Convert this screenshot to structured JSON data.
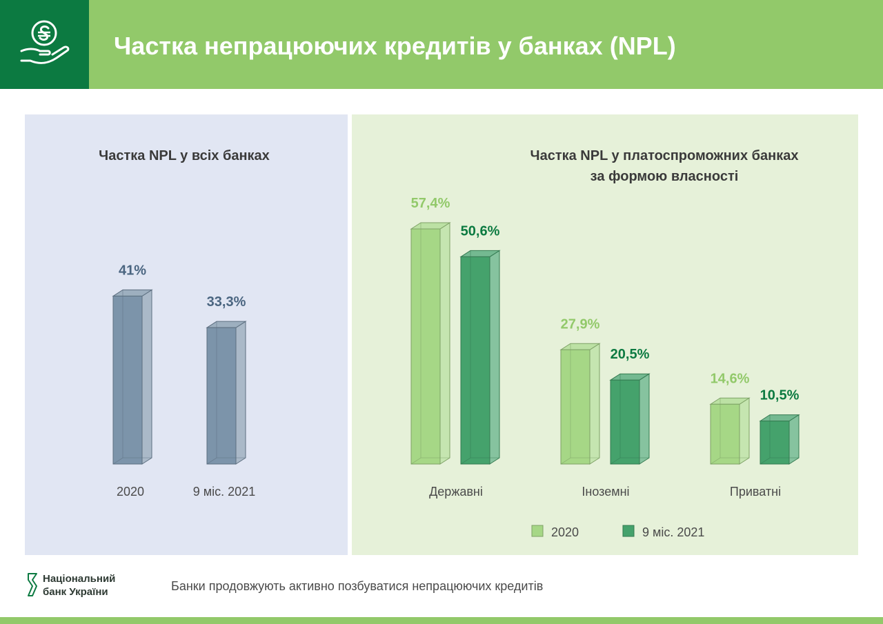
{
  "header": {
    "title": "Частка непрацюючих кредитів у банках (NPL)",
    "brand_color": "#92c96a",
    "logo_bg_color": "#0c7a41",
    "logo_icon": "hand-coin-icon"
  },
  "chart_data": [
    {
      "type": "bar",
      "title": "Частка NPL у всіх банках",
      "categories": [
        "2020",
        "9 міс. 2021"
      ],
      "values": [
        41,
        33.3
      ],
      "value_labels": [
        "41%",
        "33,3%"
      ],
      "unit": "%",
      "ylim": [
        0,
        60
      ],
      "color": "#7c94aa",
      "label_color": "#4a6580",
      "grid": false
    },
    {
      "type": "bar",
      "title": "Частка NPL у платоспроможних банках",
      "subtitle": "за формою власності",
      "categories": [
        "Державні",
        "Іноземні",
        "Приватні"
      ],
      "series": [
        {
          "name": "2020",
          "values": [
            57.4,
            27.9,
            14.6
          ],
          "value_labels": [
            "57,4%",
            "27,9%",
            "14,6%"
          ],
          "color": "#a6d786",
          "label_color": "#92c96a"
        },
        {
          "name": "9 міс. 2021",
          "values": [
            50.6,
            20.5,
            10.5
          ],
          "value_labels": [
            "50,6%",
            "20,5%",
            "10,5%"
          ],
          "color": "#45a26c",
          "label_color": "#0c7a41"
        }
      ],
      "unit": "%",
      "ylim": [
        0,
        60
      ],
      "legend": "bottom-center",
      "grid": false
    }
  ],
  "footer": {
    "org_line1": "Національний",
    "org_line2": "банк України",
    "caption": "Банки продовжують активно позбуватися непрацюючих кредитів",
    "logo_icon": "nbu-logo-icon"
  }
}
